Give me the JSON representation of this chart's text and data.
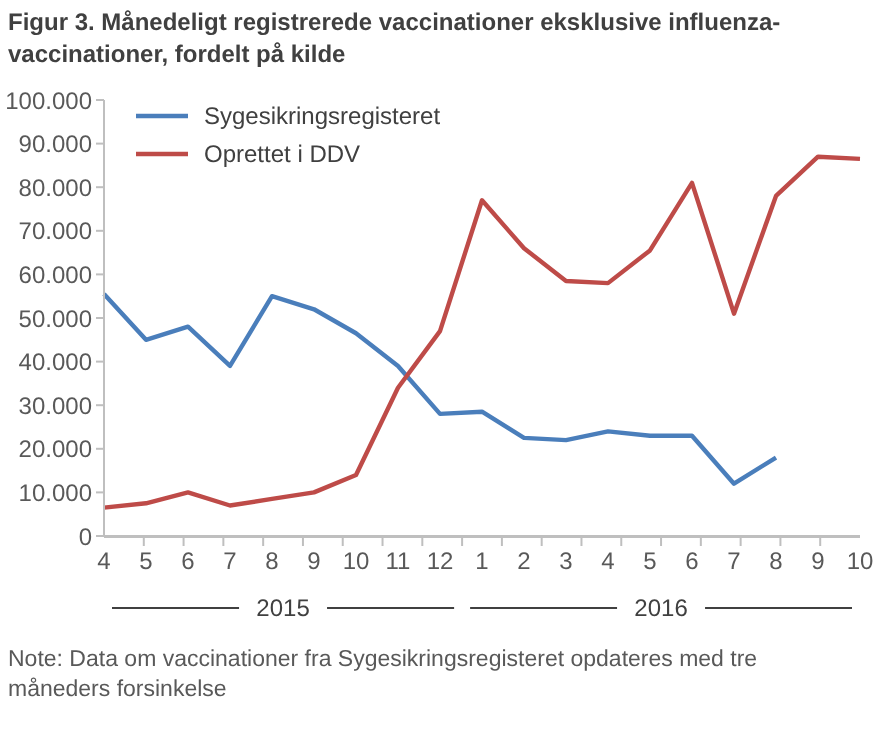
{
  "chart_data": {
    "type": "line",
    "title": "Figur 3. Månedeligt registrerede vaccinationer eksklusive influenza-vaccinationer, fordelt på kilde",
    "categories": [
      "4",
      "5",
      "6",
      "7",
      "8",
      "9",
      "10",
      "11",
      "12",
      "1",
      "2",
      "3",
      "4",
      "5",
      "6",
      "7",
      "8",
      "9",
      "10"
    ],
    "series": [
      {
        "name": "Sygesikringsregisteret",
        "color": "#4a7ebb",
        "values": [
          55500,
          45000,
          48000,
          39000,
          55000,
          52000,
          46500,
          39000,
          28000,
          28500,
          22500,
          22000,
          24000,
          23000,
          23000,
          12000,
          18000,
          null,
          null
        ]
      },
      {
        "name": "Oprettet i DDV",
        "color": "#be4b48",
        "values": [
          6500,
          7500,
          10000,
          7000,
          8500,
          10000,
          14000,
          34000,
          47000,
          77000,
          66000,
          58500,
          58000,
          65500,
          81000,
          51000,
          78000,
          87000,
          86500
        ]
      }
    ],
    "ylim": [
      0,
      100000
    ],
    "yticks": [
      0,
      {
        "value": 10000,
        "label": "10.000"
      },
      {
        "value": 20000,
        "label": "20.000"
      },
      {
        "value": 30000,
        "label": "30.000"
      },
      {
        "value": 40000,
        "label": "40.000"
      },
      {
        "value": 50000,
        "label": "50.000"
      },
      {
        "value": 60000,
        "label": "60.000"
      },
      {
        "value": 70000,
        "label": "70.000"
      },
      {
        "value": 80000,
        "label": "80.000"
      },
      {
        "value": 90000,
        "label": "90.000"
      },
      {
        "value": 100000,
        "label": "100.000"
      }
    ],
    "grid": false,
    "legend": "top left",
    "marker": "none",
    "line_style": "solid",
    "annotations": [
      "2015",
      "2016",
      "Note: Data om vaccinationer fra Sygesikringsregisteret opdateres med tre måneders forsinkelse"
    ]
  }
}
